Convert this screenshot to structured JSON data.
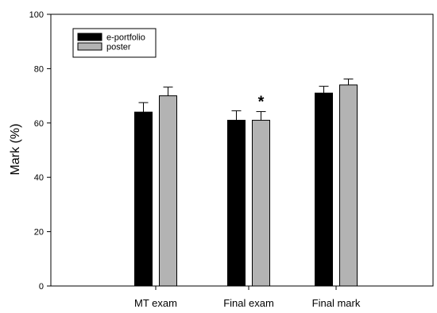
{
  "chart_data": {
    "type": "bar",
    "title": "",
    "xlabel": "",
    "ylabel": "Mark (%)",
    "ylim": [
      0,
      100
    ],
    "yticks": [
      0,
      20,
      40,
      60,
      80,
      100
    ],
    "categories": [
      "MT exam",
      "Final exam",
      "Final mark"
    ],
    "series": [
      {
        "name": "e-portfolio",
        "color": "#000000",
        "values": [
          64,
          61,
          71
        ],
        "errors": [
          3.5,
          3.5,
          2.5
        ]
      },
      {
        "name": "poster",
        "color": "#b3b3b3",
        "values": [
          70,
          61,
          74
        ],
        "errors": [
          3.2,
          3.2,
          2.2
        ]
      }
    ],
    "annotations": [
      {
        "text": "*",
        "category": "Final exam",
        "series": "poster"
      }
    ],
    "grid": false,
    "legend_position": "top-left"
  }
}
